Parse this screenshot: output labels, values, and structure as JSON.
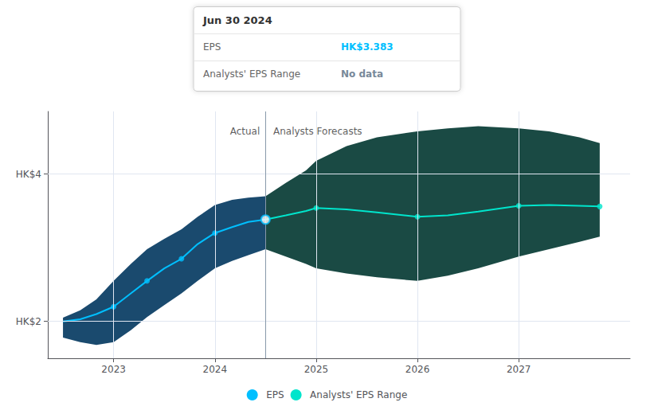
{
  "chart_data": {
    "type": "line",
    "xlim": [
      2022.35,
      2028.1
    ],
    "xticks": [
      2023,
      2024,
      2025,
      2026,
      2027
    ],
    "ylim": [
      1.5,
      4.85
    ],
    "yticks": [
      {
        "value": 2.0,
        "label": "HK$2"
      },
      {
        "value": 4.0,
        "label": "HK$4"
      }
    ],
    "grid": true,
    "series": [
      {
        "type": "band",
        "color": "#1a4a6e",
        "x": [
          2022.5,
          2022.67,
          2022.83,
          2023.0,
          2023.17,
          2023.33,
          2023.5,
          2023.67,
          2023.83,
          2024.0,
          2024.17,
          2024.33,
          2024.5
        ],
        "lower": [
          1.78,
          1.72,
          1.68,
          1.72,
          1.88,
          2.06,
          2.22,
          2.38,
          2.55,
          2.72,
          2.82,
          2.9,
          2.98
        ],
        "upper": [
          2.05,
          2.15,
          2.3,
          2.55,
          2.78,
          2.98,
          3.12,
          3.25,
          3.42,
          3.58,
          3.65,
          3.68,
          3.7
        ]
      },
      {
        "type": "band",
        "color": "#1a4a44",
        "x": [
          2024.5,
          2024.7,
          2024.9,
          2025.0,
          2025.3,
          2025.6,
          2026.0,
          2026.3,
          2026.6,
          2027.0,
          2027.3,
          2027.6,
          2027.8
        ],
        "lower": [
          2.98,
          2.88,
          2.78,
          2.72,
          2.65,
          2.6,
          2.55,
          2.62,
          2.72,
          2.88,
          2.98,
          3.08,
          3.15
        ],
        "upper": [
          3.7,
          3.88,
          4.05,
          4.18,
          4.38,
          4.5,
          4.58,
          4.62,
          4.65,
          4.62,
          4.58,
          4.5,
          4.42
        ]
      },
      {
        "type": "line",
        "name": "EPS",
        "color": "#00bfff",
        "x": [
          2022.5,
          2022.67,
          2022.83,
          2023.0,
          2023.17,
          2023.33,
          2023.5,
          2023.67,
          2023.83,
          2024.0,
          2024.17,
          2024.33,
          2024.5
        ],
        "values": [
          2.0,
          2.03,
          2.1,
          2.2,
          2.38,
          2.55,
          2.72,
          2.85,
          3.05,
          3.2,
          3.28,
          3.35,
          3.383
        ]
      },
      {
        "type": "scatter",
        "marker": "circle",
        "color": "#00bfff",
        "x": [
          2023.0,
          2023.33,
          2023.67,
          2024.0
        ],
        "values": [
          2.2,
          2.55,
          2.85,
          3.2
        ]
      },
      {
        "type": "line",
        "name": "Analysts' EPS Range",
        "color": "#00e5cc",
        "x": [
          2024.5,
          2024.7,
          2024.9,
          2025.0,
          2025.3,
          2025.6,
          2026.0,
          2026.3,
          2026.6,
          2027.0,
          2027.3,
          2027.6,
          2027.8
        ],
        "values": [
          3.383,
          3.44,
          3.5,
          3.54,
          3.52,
          3.48,
          3.42,
          3.44,
          3.49,
          3.57,
          3.58,
          3.57,
          3.56
        ]
      },
      {
        "type": "scatter",
        "marker": "circle",
        "color": "#00e5cc",
        "x": [
          2025.0,
          2026.0,
          2027.0,
          2027.8
        ],
        "values": [
          3.54,
          3.42,
          3.57,
          3.56
        ]
      },
      {
        "type": "scatter",
        "marker": "open_circle",
        "color": "#00bfff",
        "x": [
          2024.5
        ],
        "values": [
          3.383
        ]
      }
    ],
    "reference_lines": [
      {
        "x": 2024.5,
        "color": "#8899aa"
      }
    ],
    "annotations": [
      {
        "text": "Actual",
        "x": 2024.46,
        "y": 4.65
      },
      {
        "text": "Analysts Forecasts",
        "x": 2024.56,
        "y": 4.65
      }
    ],
    "panel": {
      "title": "Jun 30 2024",
      "rows": [
        {
          "label": "EPS",
          "value": "HK$3.383",
          "color": "#00bfff"
        },
        {
          "label": "Analysts' EPS Range",
          "value": "No data",
          "color": "#778899"
        }
      ]
    }
  }
}
